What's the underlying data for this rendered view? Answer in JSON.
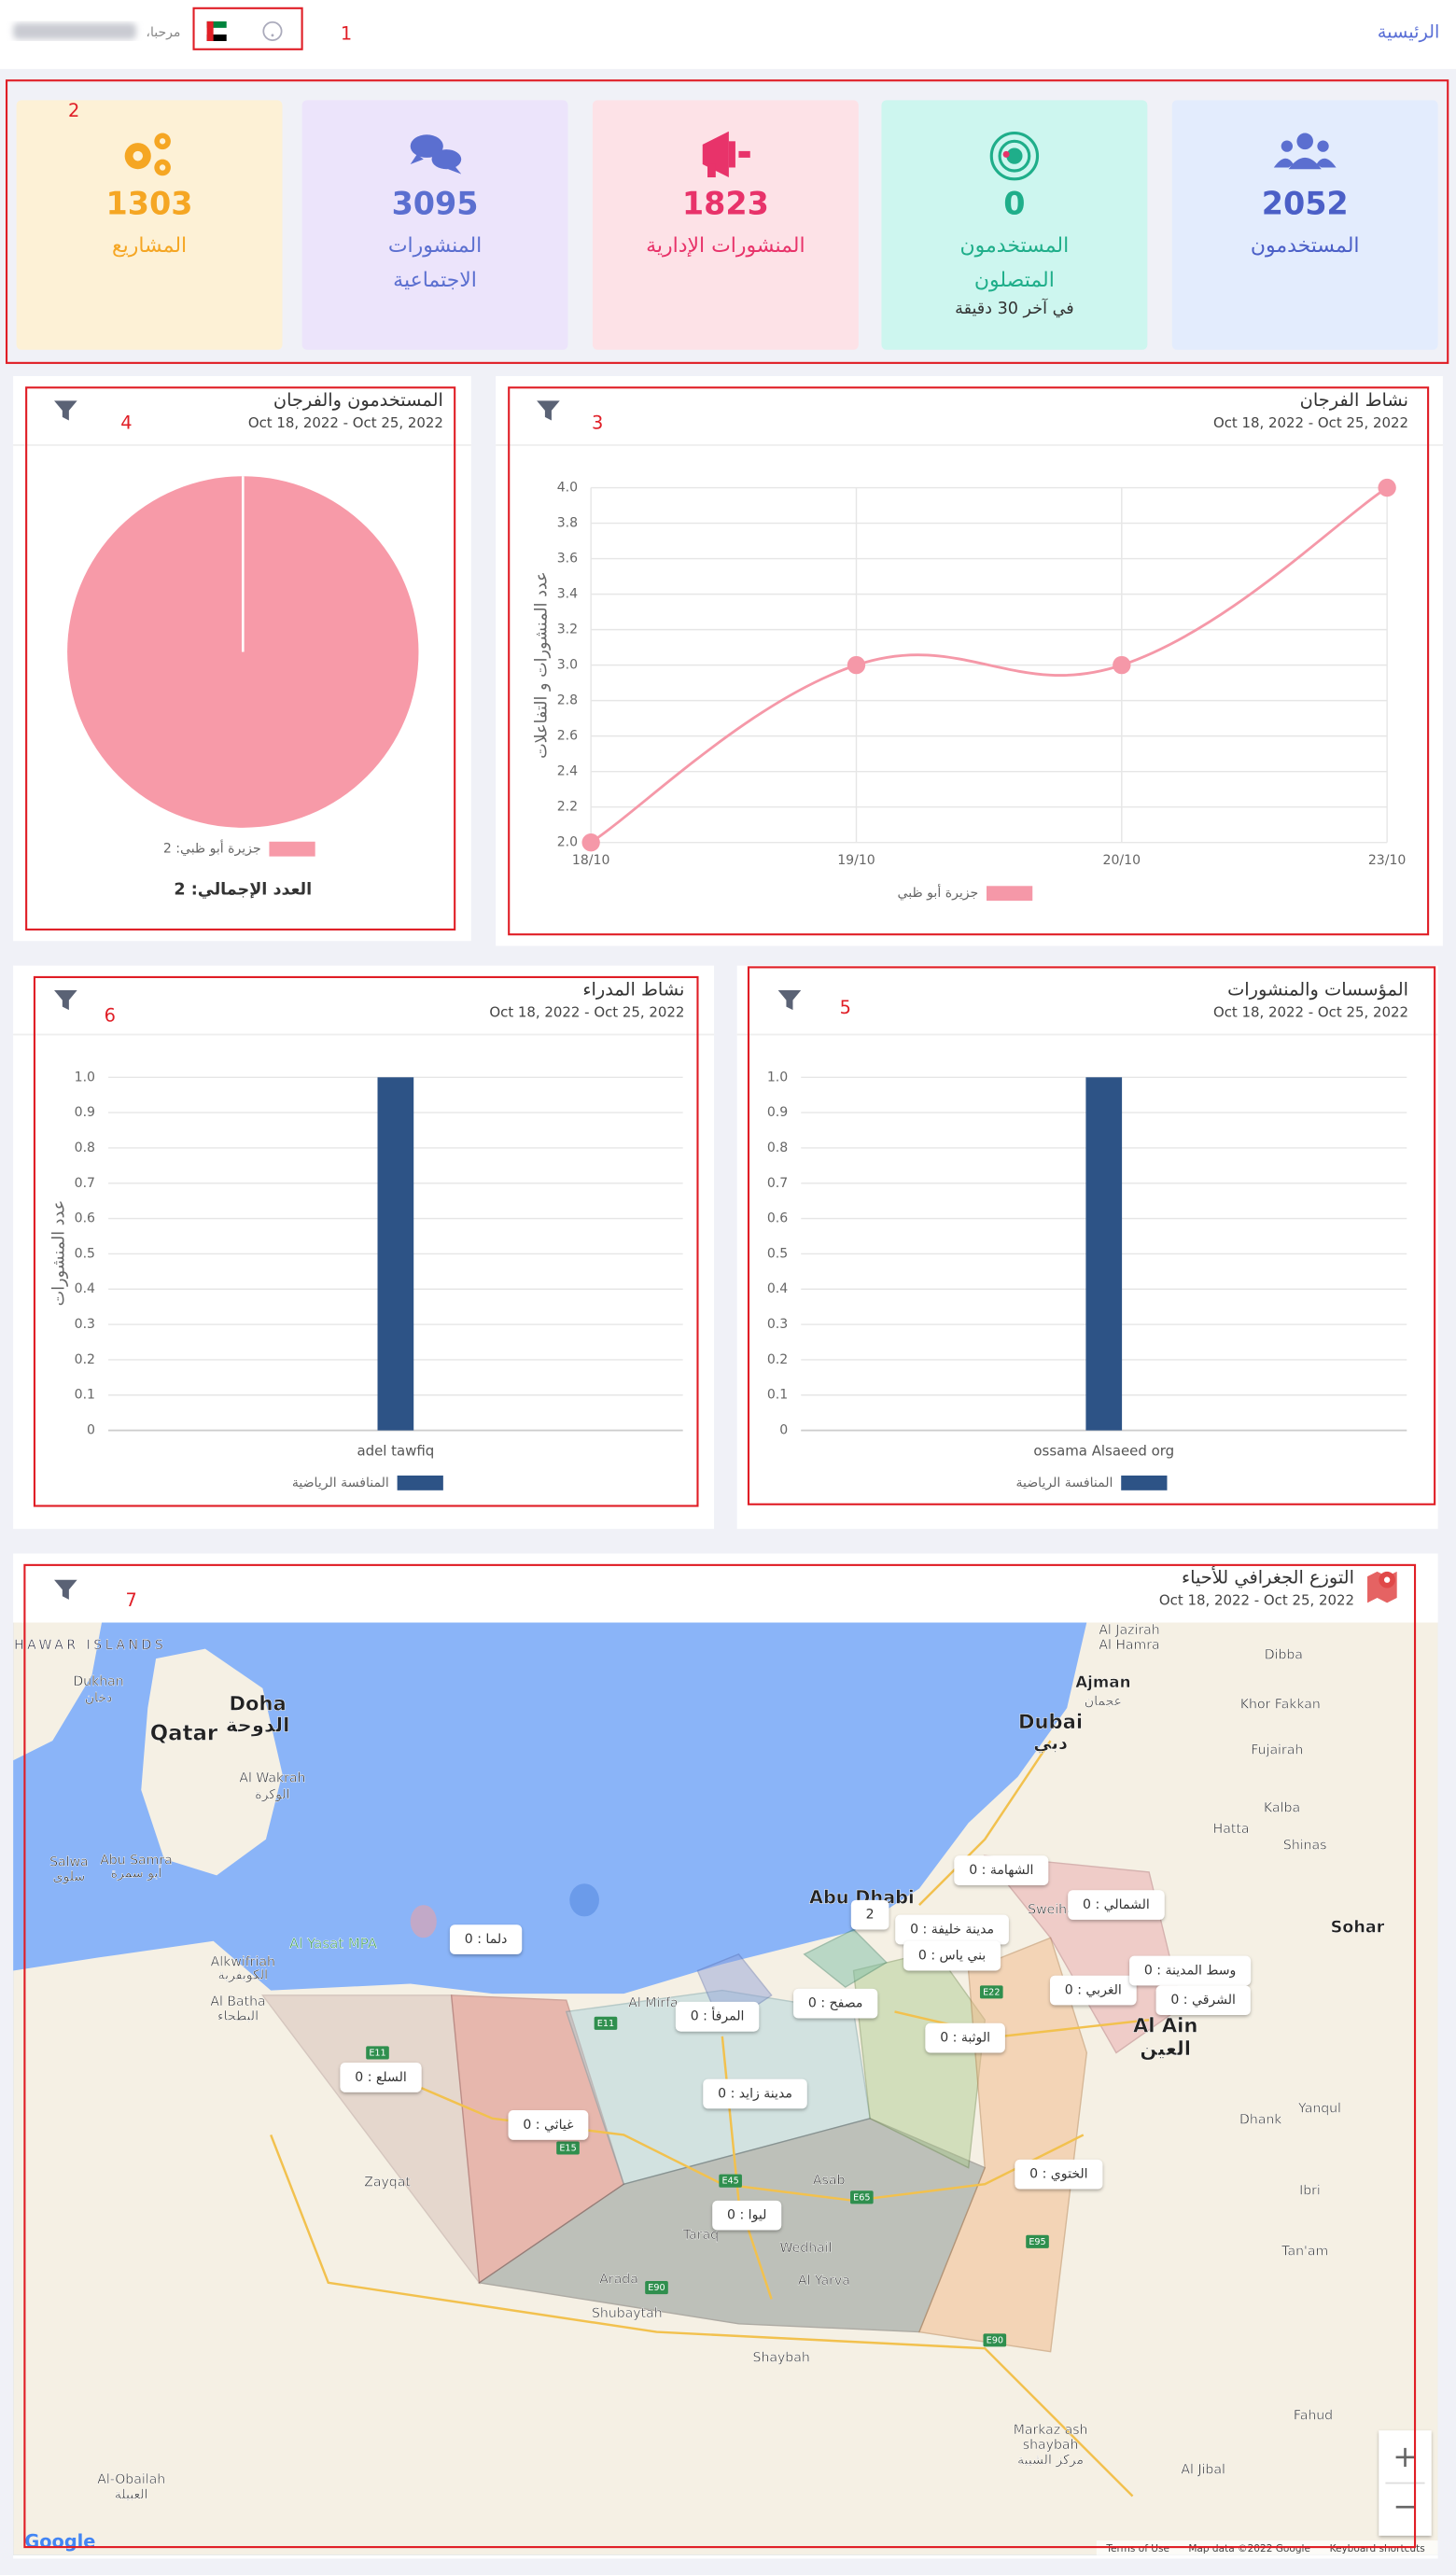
{
  "header": {
    "home_link": "الرئيسية",
    "greeting": "مرحبا،"
  },
  "annotations": [
    "1",
    "2",
    "3",
    "4",
    "5",
    "6",
    "7"
  ],
  "stats": [
    {
      "value": 2052,
      "label": [
        "المستخدمون"
      ]
    },
    {
      "value": 0,
      "label": [
        "المستخدمون",
        "المتصلون"
      ],
      "note": "في آخر 30 دقيقة"
    },
    {
      "value": 1823,
      "label": [
        "المنشورات الإدارية"
      ]
    },
    {
      "value": 3095,
      "label": [
        "المنشورات",
        "الاجتماعية"
      ]
    },
    {
      "value": 1303,
      "label": [
        "المشاريع"
      ]
    }
  ],
  "chart_data": [
    {
      "type": "line",
      "title": "نشاط الفرجان",
      "subtitle": "Oct 18, 2022 - Oct 25, 2022",
      "y_label": "عدد المنشورات و التفاعلات",
      "categories": [
        "18/10",
        "19/10",
        "20/10",
        "23/10"
      ],
      "series": [
        {
          "name": "جزيرة أبو ظبي",
          "color": "#f598a8",
          "values": [
            2,
            3,
            3,
            4
          ]
        }
      ],
      "ylim": [
        2,
        4
      ],
      "yticks": [
        {
          "value": 2,
          "label": "2.0"
        },
        2.2,
        2.4,
        2.6,
        2.8,
        {
          "value": 3,
          "label": "3.0"
        },
        3.2,
        3.4,
        3.6,
        3.8,
        {
          "value": 4,
          "label": "4.0"
        }
      ],
      "grid": true
    },
    {
      "type": "pie",
      "title": "المستخدمون والفرجان",
      "subtitle": "Oct 18, 2022 - Oct 25, 2022",
      "categories": [
        "جزيرة أبو ظبي: 2"
      ],
      "values": [
        2
      ],
      "colors": [
        "#f79aa8"
      ],
      "total_label": "العدد الإجمالي: 2"
    },
    {
      "type": "bar",
      "title": "المؤسسات والمنشورات",
      "subtitle": "Oct 18, 2022 - Oct 25, 2022",
      "categories": [
        "ossama Alsaeed org"
      ],
      "series": [
        {
          "name": "المنافسة الرياضية",
          "color": "#2d5386",
          "values": [
            1
          ]
        }
      ],
      "ylim": [
        0,
        1
      ],
      "yticks": [
        0,
        0.1,
        0.2,
        0.3,
        0.4,
        0.5,
        0.6,
        0.7,
        0.8,
        0.9,
        {
          "value": 1,
          "label": "1.0"
        }
      ],
      "grid": true
    },
    {
      "type": "bar",
      "title": "نشاط المدراء",
      "subtitle": "Oct 18, 2022 - Oct 25, 2022",
      "y_label": "عدد المنشورات",
      "categories": [
        "adel tawfiq"
      ],
      "series": [
        {
          "name": "المنافسة الرياضية",
          "color": "#2d5386",
          "values": [
            1
          ]
        }
      ],
      "ylim": [
        0,
        1
      ],
      "yticks": [
        0,
        0.1,
        0.2,
        0.3,
        0.4,
        0.5,
        0.6,
        0.7,
        0.8,
        0.9,
        {
          "value": 1,
          "label": "1.0"
        }
      ],
      "grid": true
    }
  ],
  "map": {
    "title": "التوزع الجغرافي للأحياء",
    "subtitle": "Oct 18, 2022 - Oct 25, 2022",
    "districts": [
      "دلما : 0",
      "الشهامة : 0",
      "الشمالي : 0",
      "مدينة خليفة : 0",
      "بني ياس : 0",
      "2",
      "المرفأ : 0",
      "مصفح : 0",
      "الوثبة : 0",
      "الغربي : 0",
      "وسط المدينة : 0",
      "الشرقي : 0",
      "السلع : 0",
      "غياثي : 0",
      "مدينة زايد : 0",
      "ليوا : 0",
      "الختوي : 0"
    ],
    "places": [
      "HAWAR ISLANDS",
      "Dukhan",
      "دخان",
      "Doha",
      "الدوحة",
      "Qatar",
      "Al Wakrah",
      "الوكرة",
      "Salwa",
      "سلوى",
      "Abu Samra",
      "أبو سمرة",
      "Al Yasat MPA",
      "Alkwifriah",
      "الكويفرية",
      "Al Batha",
      "البطحاء",
      "Zayqat",
      "Abu Dhabi",
      "Al Mirfa",
      "Asab",
      "Taraq",
      "Wedhail",
      "Arada",
      "Al Yarva",
      "Shubaytah",
      "Shaybah",
      "Markaz ash",
      "shaybah",
      "مركز الشيبة",
      "Al-Obailah",
      "العبيلة",
      "Al Jibal",
      "Fahud",
      "Tan'am",
      "Ibri",
      "Dhank",
      "Yanqul",
      "Sohar",
      "Al Ain",
      "العين",
      "Dubai",
      "دبي",
      "Ajman",
      "عجمان",
      "Dibba",
      "Khor Fakkan",
      "Fujairah",
      "Kalba",
      "Hatta",
      "Shinas",
      "Sweihan",
      "Al Jazirah",
      "Al Hamra"
    ],
    "roads": [
      "E11",
      "E11",
      "E15",
      "E45",
      "E65",
      "E90",
      "E90",
      "E95",
      "E22"
    ],
    "attribution": {
      "logo": "Google",
      "terms": "Terms of Use",
      "data": "Map data ©2022 Google",
      "shortcuts": "Keyboard shortcuts"
    },
    "zoom": [
      "+",
      "−"
    ]
  }
}
